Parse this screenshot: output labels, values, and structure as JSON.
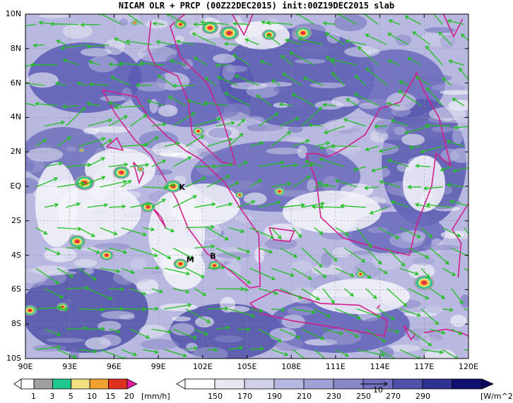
{
  "title": "NICAM OLR + PRCP (00Z22DEC2015) init:00Z19DEC2015 slab",
  "lat_labels": [
    "10N",
    "8N",
    "6N",
    "4N",
    "2N",
    "EQ",
    "2S",
    "4S",
    "6S",
    "8S",
    "10S"
  ],
  "lon_labels": [
    "90E",
    "93E",
    "96E",
    "99E",
    "102E",
    "105E",
    "108E",
    "111E",
    "114E",
    "117E",
    "120E"
  ],
  "map_annotations": [
    "K",
    "M",
    "B"
  ],
  "precip_colorbar": {
    "ticks": [
      "1",
      "3",
      "5",
      "10",
      "15",
      "20"
    ],
    "unit": "[mm/h]",
    "colors": [
      "#a0a0a0",
      "#20c890",
      "#f0e080",
      "#f0a030",
      "#e03020",
      "#e020a0"
    ]
  },
  "olr_colorbar": {
    "ticks": [
      "150",
      "170",
      "190",
      "210",
      "230",
      "250",
      "270",
      "290"
    ],
    "unit": "[W/m^2]",
    "colors": [
      "#ffffff",
      "#e8e8f4",
      "#d0d0ea",
      "#b8b8e0",
      "#a0a0d4",
      "#8888c8",
      "#7070bc",
      "#5050a8",
      "#303090",
      "#101070"
    ]
  },
  "vector_reference": "10",
  "colors": {
    "coastline": "#d0208a",
    "wind_vector": "#20c020",
    "grid": "#9090a0"
  }
}
